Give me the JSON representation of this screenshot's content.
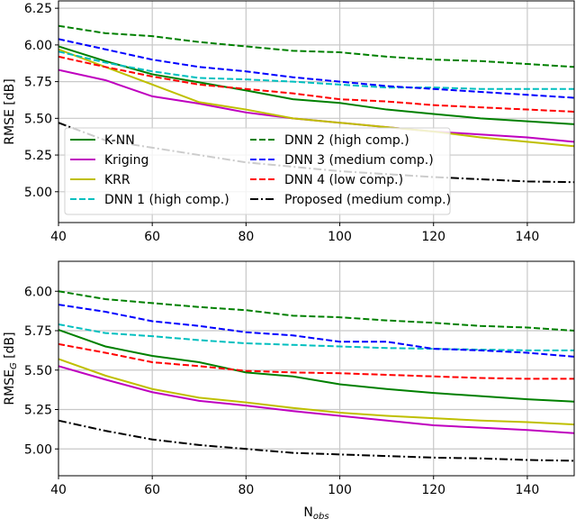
{
  "chart_data": [
    {
      "type": "line",
      "title": "",
      "xlabel": "",
      "ylabel": "RMSE [dB]",
      "xlim": [
        40,
        150
      ],
      "ylim": [
        4.79,
        6.3
      ],
      "xticks": [
        40,
        60,
        80,
        100,
        120,
        140
      ],
      "yticks": [
        5.0,
        5.25,
        5.5,
        5.75,
        6.0,
        6.25
      ],
      "ytick_labels": [
        "5.00",
        "5.25",
        "5.50",
        "5.75",
        "6.00",
        "6.25"
      ],
      "grid": true,
      "legend": "lower-left",
      "x": [
        40,
        50,
        60,
        70,
        80,
        90,
        100,
        110,
        120,
        130,
        140,
        150
      ],
      "series": [
        {
          "name": "K-NN",
          "color": "#008000",
          "style": "solid",
          "values": [
            5.99,
            5.89,
            5.8,
            5.745,
            5.69,
            5.63,
            5.605,
            5.56,
            5.53,
            5.5,
            5.48,
            5.46
          ]
        },
        {
          "name": "Kriging",
          "color": "#bf00bf",
          "style": "solid",
          "values": [
            5.83,
            5.76,
            5.65,
            5.6,
            5.54,
            5.5,
            5.47,
            5.44,
            5.41,
            5.39,
            5.37,
            5.34
          ]
        },
        {
          "name": "KRR",
          "color": "#bfbf00",
          "style": "solid",
          "values": [
            5.97,
            5.85,
            5.73,
            5.61,
            5.56,
            5.5,
            5.47,
            5.44,
            5.41,
            5.37,
            5.34,
            5.31
          ]
        },
        {
          "name": "DNN 1 (high comp.)",
          "color": "#00bfbf",
          "style": "dashed",
          "values": [
            5.955,
            5.88,
            5.82,
            5.775,
            5.765,
            5.75,
            5.73,
            5.71,
            5.71,
            5.7,
            5.7,
            5.7
          ]
        },
        {
          "name": "DNN 2 (high comp.)",
          "color": "#008000",
          "style": "dashed",
          "values": [
            6.13,
            6.08,
            6.06,
            6.02,
            5.99,
            5.96,
            5.95,
            5.92,
            5.9,
            5.89,
            5.87,
            5.85
          ]
        },
        {
          "name": "DNN 3 (medium comp.)",
          "color": "#0000ff",
          "style": "dashed",
          "values": [
            6.04,
            5.97,
            5.9,
            5.85,
            5.82,
            5.78,
            5.75,
            5.72,
            5.7,
            5.68,
            5.66,
            5.64
          ]
        },
        {
          "name": "DNN 4 (low comp.)",
          "color": "#ff0000",
          "style": "dashed",
          "values": [
            5.92,
            5.85,
            5.785,
            5.73,
            5.7,
            5.67,
            5.63,
            5.615,
            5.59,
            5.575,
            5.56,
            5.545
          ]
        },
        {
          "name": "Proposed (medium comp.)",
          "color": "#000000",
          "style": "dashdot",
          "values": [
            5.47,
            5.35,
            5.3,
            5.25,
            5.2,
            5.17,
            5.14,
            5.12,
            5.1,
            5.085,
            5.07,
            5.065
          ]
        }
      ]
    },
    {
      "type": "line",
      "title": "",
      "xlabel": "N",
      "xlabel_sub": "obs",
      "ylabel": "RMSE",
      "ylabel_sub": "G",
      "ylabel_unit": " [dB]",
      "xlim": [
        40,
        150
      ],
      "ylim": [
        4.83,
        6.19
      ],
      "xticks": [
        40,
        60,
        80,
        100,
        120,
        140
      ],
      "yticks": [
        5.0,
        5.25,
        5.5,
        5.75,
        6.0
      ],
      "ytick_labels": [
        "5.00",
        "5.25",
        "5.50",
        "5.75",
        "6.00"
      ],
      "grid": true,
      "legend": "none",
      "x": [
        40,
        50,
        60,
        70,
        80,
        90,
        100,
        110,
        120,
        130,
        140,
        150
      ],
      "series": [
        {
          "name": "K-NN",
          "color": "#008000",
          "style": "solid",
          "values": [
            5.755,
            5.65,
            5.59,
            5.55,
            5.485,
            5.46,
            5.41,
            5.38,
            5.355,
            5.335,
            5.315,
            5.3
          ]
        },
        {
          "name": "Kriging",
          "color": "#bf00bf",
          "style": "solid",
          "values": [
            5.525,
            5.44,
            5.36,
            5.305,
            5.275,
            5.24,
            5.21,
            5.18,
            5.15,
            5.135,
            5.12,
            5.1
          ]
        },
        {
          "name": "KRR",
          "color": "#bfbf00",
          "style": "solid",
          "values": [
            5.57,
            5.465,
            5.38,
            5.325,
            5.295,
            5.26,
            5.23,
            5.21,
            5.195,
            5.18,
            5.17,
            5.155
          ]
        },
        {
          "name": "DNN 1 (high comp.)",
          "color": "#00bfbf",
          "style": "dashed",
          "values": [
            5.79,
            5.735,
            5.715,
            5.69,
            5.67,
            5.66,
            5.65,
            5.64,
            5.635,
            5.63,
            5.625,
            5.625
          ]
        },
        {
          "name": "DNN 2 (high comp.)",
          "color": "#008000",
          "style": "dashed",
          "values": [
            6.0,
            5.95,
            5.925,
            5.9,
            5.88,
            5.845,
            5.835,
            5.815,
            5.8,
            5.78,
            5.77,
            5.75
          ]
        },
        {
          "name": "DNN 3 (medium comp.)",
          "color": "#0000ff",
          "style": "dashed",
          "values": [
            5.915,
            5.87,
            5.81,
            5.78,
            5.74,
            5.72,
            5.68,
            5.68,
            5.635,
            5.625,
            5.61,
            5.585
          ]
        },
        {
          "name": "DNN 4 (low comp.)",
          "color": "#ff0000",
          "style": "dashed",
          "values": [
            5.665,
            5.61,
            5.55,
            5.525,
            5.495,
            5.485,
            5.48,
            5.47,
            5.46,
            5.45,
            5.445,
            5.445
          ]
        },
        {
          "name": "Proposed (medium comp.)",
          "color": "#000000",
          "style": "dashdot",
          "values": [
            5.18,
            5.115,
            5.06,
            5.025,
            5.0,
            4.975,
            4.965,
            4.955,
            4.945,
            4.94,
            4.93,
            4.925
          ]
        }
      ]
    }
  ]
}
